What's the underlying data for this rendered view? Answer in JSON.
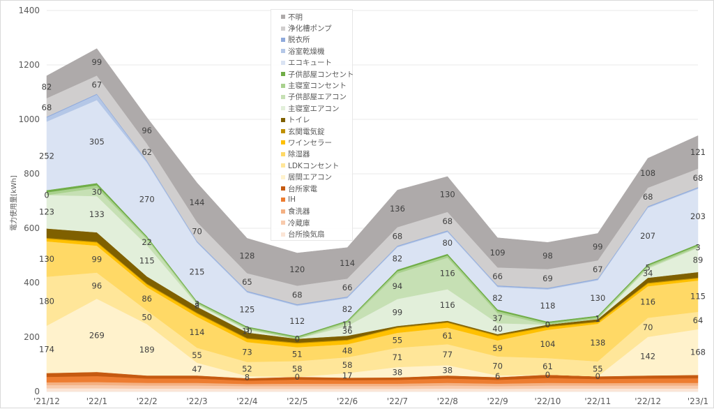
{
  "chart_data": {
    "type": "area",
    "stacked": true,
    "title": "",
    "xlabel": "",
    "ylabel": "電力使用量[kWh]",
    "ylim": [
      0,
      1400
    ],
    "yticks": [
      "0",
      "200",
      "400",
      "600",
      "800",
      "1000",
      "1200",
      "1400"
    ],
    "grid": true,
    "legend_position": "top-center",
    "categories": [
      "'21/12",
      "'22/1",
      "'22/2",
      "'22/3",
      "'22/4",
      "'22/5",
      "'22/6",
      "'22/7",
      "'22/8",
      "'22/9",
      "'22/10",
      "'22/11",
      "'22/12",
      "'23/1"
    ],
    "series": [
      {
        "name": "台所換気扇",
        "color": "#fbe5d6",
        "values": [
          12,
          12,
          11,
          11,
          10,
          10,
          10,
          10,
          11,
          10,
          11,
          11,
          11,
          11
        ],
        "labeled": false
      },
      {
        "name": "冷蔵庫",
        "color": "#f8cbad",
        "values": [
          12,
          12,
          11,
          11,
          10,
          10,
          10,
          10,
          11,
          10,
          11,
          11,
          11,
          11
        ],
        "labeled": false
      },
      {
        "name": "食洗器",
        "color": "#f4b183",
        "values": [
          10,
          11,
          10,
          10,
          8,
          9,
          9,
          9,
          10,
          9,
          10,
          9,
          10,
          10
        ],
        "labeled": false
      },
      {
        "name": "IH",
        "color": "#ed7d31",
        "values": [
          20,
          22,
          16,
          16,
          12,
          15,
          13,
          14,
          16,
          14,
          18,
          15,
          16,
          17
        ],
        "labeled": false
      },
      {
        "name": "台所家電",
        "color": "#c55a11",
        "values": [
          14,
          15,
          11,
          11,
          9,
          10,
          9,
          9,
          11,
          10,
          12,
          10,
          11,
          12
        ],
        "labeled": false
      },
      {
        "name": "居間エアコン",
        "color": "#fff2cc",
        "values": [
          174,
          269,
          189,
          47,
          8,
          0,
          17,
          38,
          38,
          6,
          0,
          0,
          142,
          168
        ],
        "labeled": true
      },
      {
        "name": "LDKコンセント",
        "color": "#ffe699",
        "values": [
          180,
          96,
          50,
          55,
          52,
          58,
          58,
          71,
          77,
          70,
          61,
          55,
          70,
          64
        ],
        "labeled": true
      },
      {
        "name": "除湿器",
        "color": "#ffd966",
        "values": [
          130,
          99,
          86,
          114,
          73,
          51,
          48,
          55,
          61,
          59,
          104,
          138,
          116,
          115
        ],
        "labeled": true
      },
      {
        "name": "ワインセラー",
        "color": "#ffc000",
        "values": [
          10,
          12,
          10,
          12,
          12,
          14,
          14,
          18,
          18,
          16,
          10,
          6,
          10,
          8
        ],
        "labeled": false
      },
      {
        "name": "玄関電気錠",
        "color": "#bf9000",
        "values": [
          3,
          3,
          3,
          3,
          3,
          3,
          3,
          3,
          3,
          3,
          3,
          3,
          3,
          3
        ],
        "labeled": false
      },
      {
        "name": "トイレ",
        "color": "#7f6000",
        "values": [
          34,
          34,
          26,
          22,
          20,
          14,
          14,
          4,
          4,
          4,
          6,
          8,
          18,
          20
        ],
        "labeled": false
      },
      {
        "name": "主寝室エアコン",
        "color": "#e2efda",
        "values": [
          123,
          133,
          115,
          8,
          10,
          0,
          36,
          99,
          116,
          40,
          0,
          1,
          34,
          89
        ],
        "labeled": true
      },
      {
        "name": "子供部屋エアコン",
        "color": "#c6e0b4",
        "values": [
          0,
          30,
          22,
          3,
          3,
          0,
          11,
          94,
          116,
          37,
          0,
          1,
          5,
          3
        ],
        "labeled": true
      },
      {
        "name": "主寝室コンセント",
        "color": "#a9d18e",
        "values": [
          10,
          10,
          6,
          5,
          5,
          5,
          5,
          8,
          8,
          8,
          6,
          6,
          6,
          6
        ],
        "labeled": false
      },
      {
        "name": "子供部屋コンセント",
        "color": "#70ad47",
        "values": [
          8,
          8,
          5,
          4,
          4,
          4,
          4,
          6,
          6,
          6,
          5,
          5,
          5,
          5
        ],
        "labeled": false
      },
      {
        "name": "エコキュート",
        "color": "#dae3f3",
        "values": [
          252,
          305,
          270,
          215,
          125,
          112,
          82,
          82,
          80,
          82,
          118,
          130,
          207,
          203
        ],
        "labeled": true
      },
      {
        "name": "浴室乾燥機",
        "color": "#b4c7e7",
        "values": [
          15,
          20,
          5,
          3,
          3,
          3,
          3,
          3,
          3,
          3,
          3,
          3,
          3,
          3
        ],
        "labeled": false
      },
      {
        "name": "脱衣所",
        "color": "#8faadc",
        "values": [
          3,
          3,
          3,
          3,
          3,
          3,
          3,
          3,
          3,
          3,
          3,
          3,
          3,
          3
        ],
        "labeled": false
      },
      {
        "name": "浄化槽ポンプ",
        "color": "#d0cece",
        "values": [
          68,
          67,
          62,
          70,
          65,
          68,
          66,
          68,
          68,
          66,
          69,
          67,
          68,
          68
        ],
        "labeled": true
      },
      {
        "name": "不明",
        "color": "#aeaaaa",
        "values": [
          82,
          99,
          96,
          144,
          128,
          120,
          114,
          136,
          130,
          109,
          98,
          99,
          108,
          121
        ],
        "labeled": true
      }
    ]
  },
  "legend": {
    "items": [
      {
        "label": "不明",
        "color": "#aeaaaa"
      },
      {
        "label": "浄化槽ポンプ",
        "color": "#d0cece"
      },
      {
        "label": "脱衣所",
        "color": "#8faadc"
      },
      {
        "label": "浴室乾燥機",
        "color": "#b4c7e7"
      },
      {
        "label": "エコキュート",
        "color": "#dae3f3"
      },
      {
        "label": "子供部屋コンセント",
        "color": "#70ad47"
      },
      {
        "label": "主寝室コンセント",
        "color": "#a9d18e"
      },
      {
        "label": "子供部屋エアコン",
        "color": "#c6e0b4"
      },
      {
        "label": "主寝室エアコン",
        "color": "#e2efda"
      },
      {
        "label": "トイレ",
        "color": "#7f6000"
      },
      {
        "label": "玄関電気錠",
        "color": "#bf9000"
      },
      {
        "label": "ワインセラー",
        "color": "#ffc000"
      },
      {
        "label": "除湿器",
        "color": "#ffd966"
      },
      {
        "label": "LDKコンセント",
        "color": "#ffe699"
      },
      {
        "label": "居間エアコン",
        "color": "#fff2cc"
      },
      {
        "label": "台所家電",
        "color": "#c55a11"
      },
      {
        "label": "IH",
        "color": "#ed7d31"
      },
      {
        "label": "食洗器",
        "color": "#f4b183"
      },
      {
        "label": "冷蔵庫",
        "color": "#f8cbad"
      },
      {
        "label": "台所換気扇",
        "color": "#fbe5d6"
      }
    ]
  }
}
